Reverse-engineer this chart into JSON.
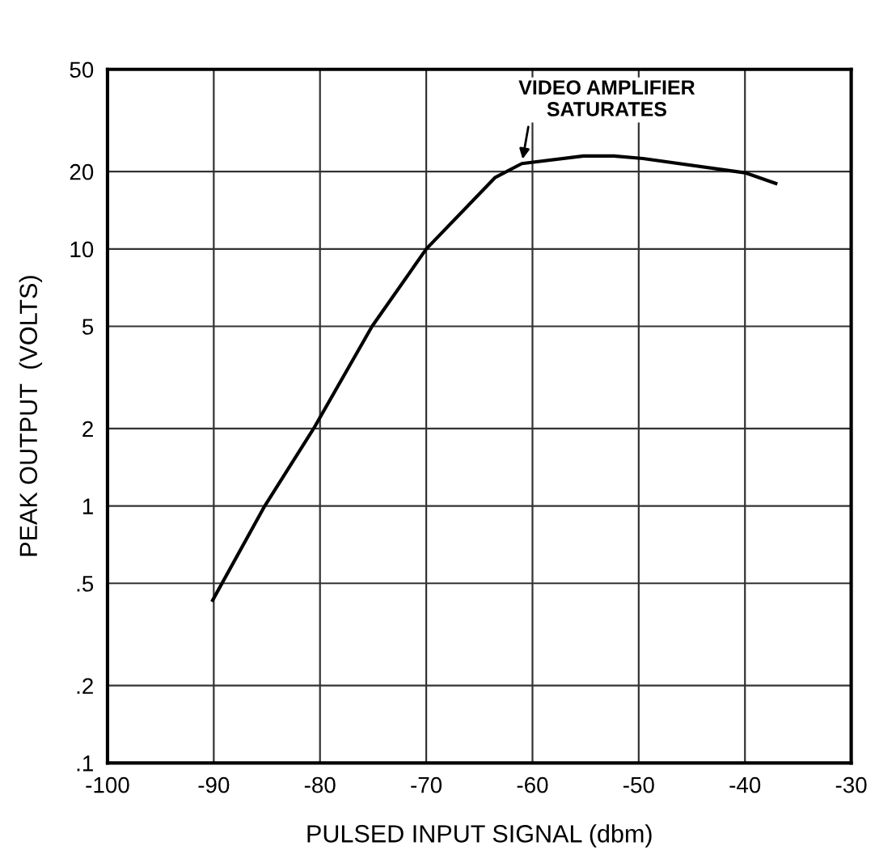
{
  "chart_data": {
    "type": "line",
    "xlabel": "PULSED INPUT SIGNAL (dbm)",
    "ylabel": "PEAK OUTPUT  (VOLTS)",
    "x": [
      -90.1,
      -85.2,
      -80.6,
      -75.1,
      -70,
      -63.5,
      -61,
      -55.2,
      -52.3,
      -49.6,
      -40,
      -37.1
    ],
    "series": [
      {
        "color": "#000000",
        "values": [
          0.43,
          1,
          2,
          5,
          10,
          19,
          21.5,
          23,
          23,
          22.5,
          19.8,
          18
        ]
      }
    ],
    "log": "y",
    "xlim": [
      -100,
      -30
    ],
    "ylim": [
      0.1,
      50
    ],
    "xticks": [
      -100,
      -90,
      -80,
      -70,
      -60,
      -50,
      -40,
      -30
    ],
    "yticks": [
      {
        "value": 0.1,
        "label": ".1"
      },
      {
        "value": 0.2,
        "label": ".2"
      },
      {
        "value": 0.5,
        "label": ".5"
      },
      1,
      2,
      5,
      10,
      20,
      50
    ],
    "grid": true,
    "line_style": "solid",
    "annotations": [
      {
        "text": "VIDEO AMPLIFIER\nSATURATES",
        "x": -61,
        "y": 21.5
      }
    ]
  }
}
